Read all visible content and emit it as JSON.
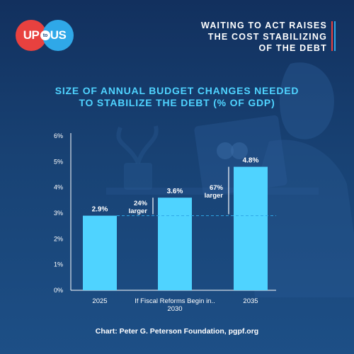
{
  "logo": {
    "left": "UP",
    "middle": "to",
    "right": "US"
  },
  "headline": {
    "lines": [
      "WAITING TO ACT RAISES",
      "THE COST STABILIZING",
      "OF THE DEBT"
    ],
    "accent_colors": [
      "#e8413f",
      "#2fa8e8"
    ]
  },
  "source": "Chart: Peter G. Peterson Foundation, pgpf.org",
  "colors": {
    "bar": "#4fd3ff",
    "title": "#4fd3ff",
    "baseline_dash": "#2fa8e8",
    "background": "#184274"
  },
  "chart_data": {
    "type": "bar",
    "title_lines": [
      "SIZE OF ANNUAL BUDGET CHANGES NEEDED",
      "TO STABILIZE THE DEBT (% OF GDP)"
    ],
    "categories": [
      [
        "2025"
      ],
      [
        "If Fiscal Reforms Begin in..",
        "2030"
      ],
      [
        "2035"
      ]
    ],
    "values": [
      2.9,
      3.6,
      4.8
    ],
    "value_labels": [
      "2.9%",
      "3.6%",
      "4.8%"
    ],
    "yticks": [
      0,
      1,
      2,
      3,
      4,
      5,
      6
    ],
    "ytick_labels": [
      "0%",
      "1%",
      "2%",
      "3%",
      "4%",
      "5%",
      "6%"
    ],
    "ylim": [
      0,
      6
    ],
    "reference_line": 2.9,
    "annotations": [
      {
        "bar_index": 1,
        "lines": [
          "24%",
          "larger"
        ]
      },
      {
        "bar_index": 2,
        "lines": [
          "67%",
          "larger"
        ]
      }
    ]
  }
}
